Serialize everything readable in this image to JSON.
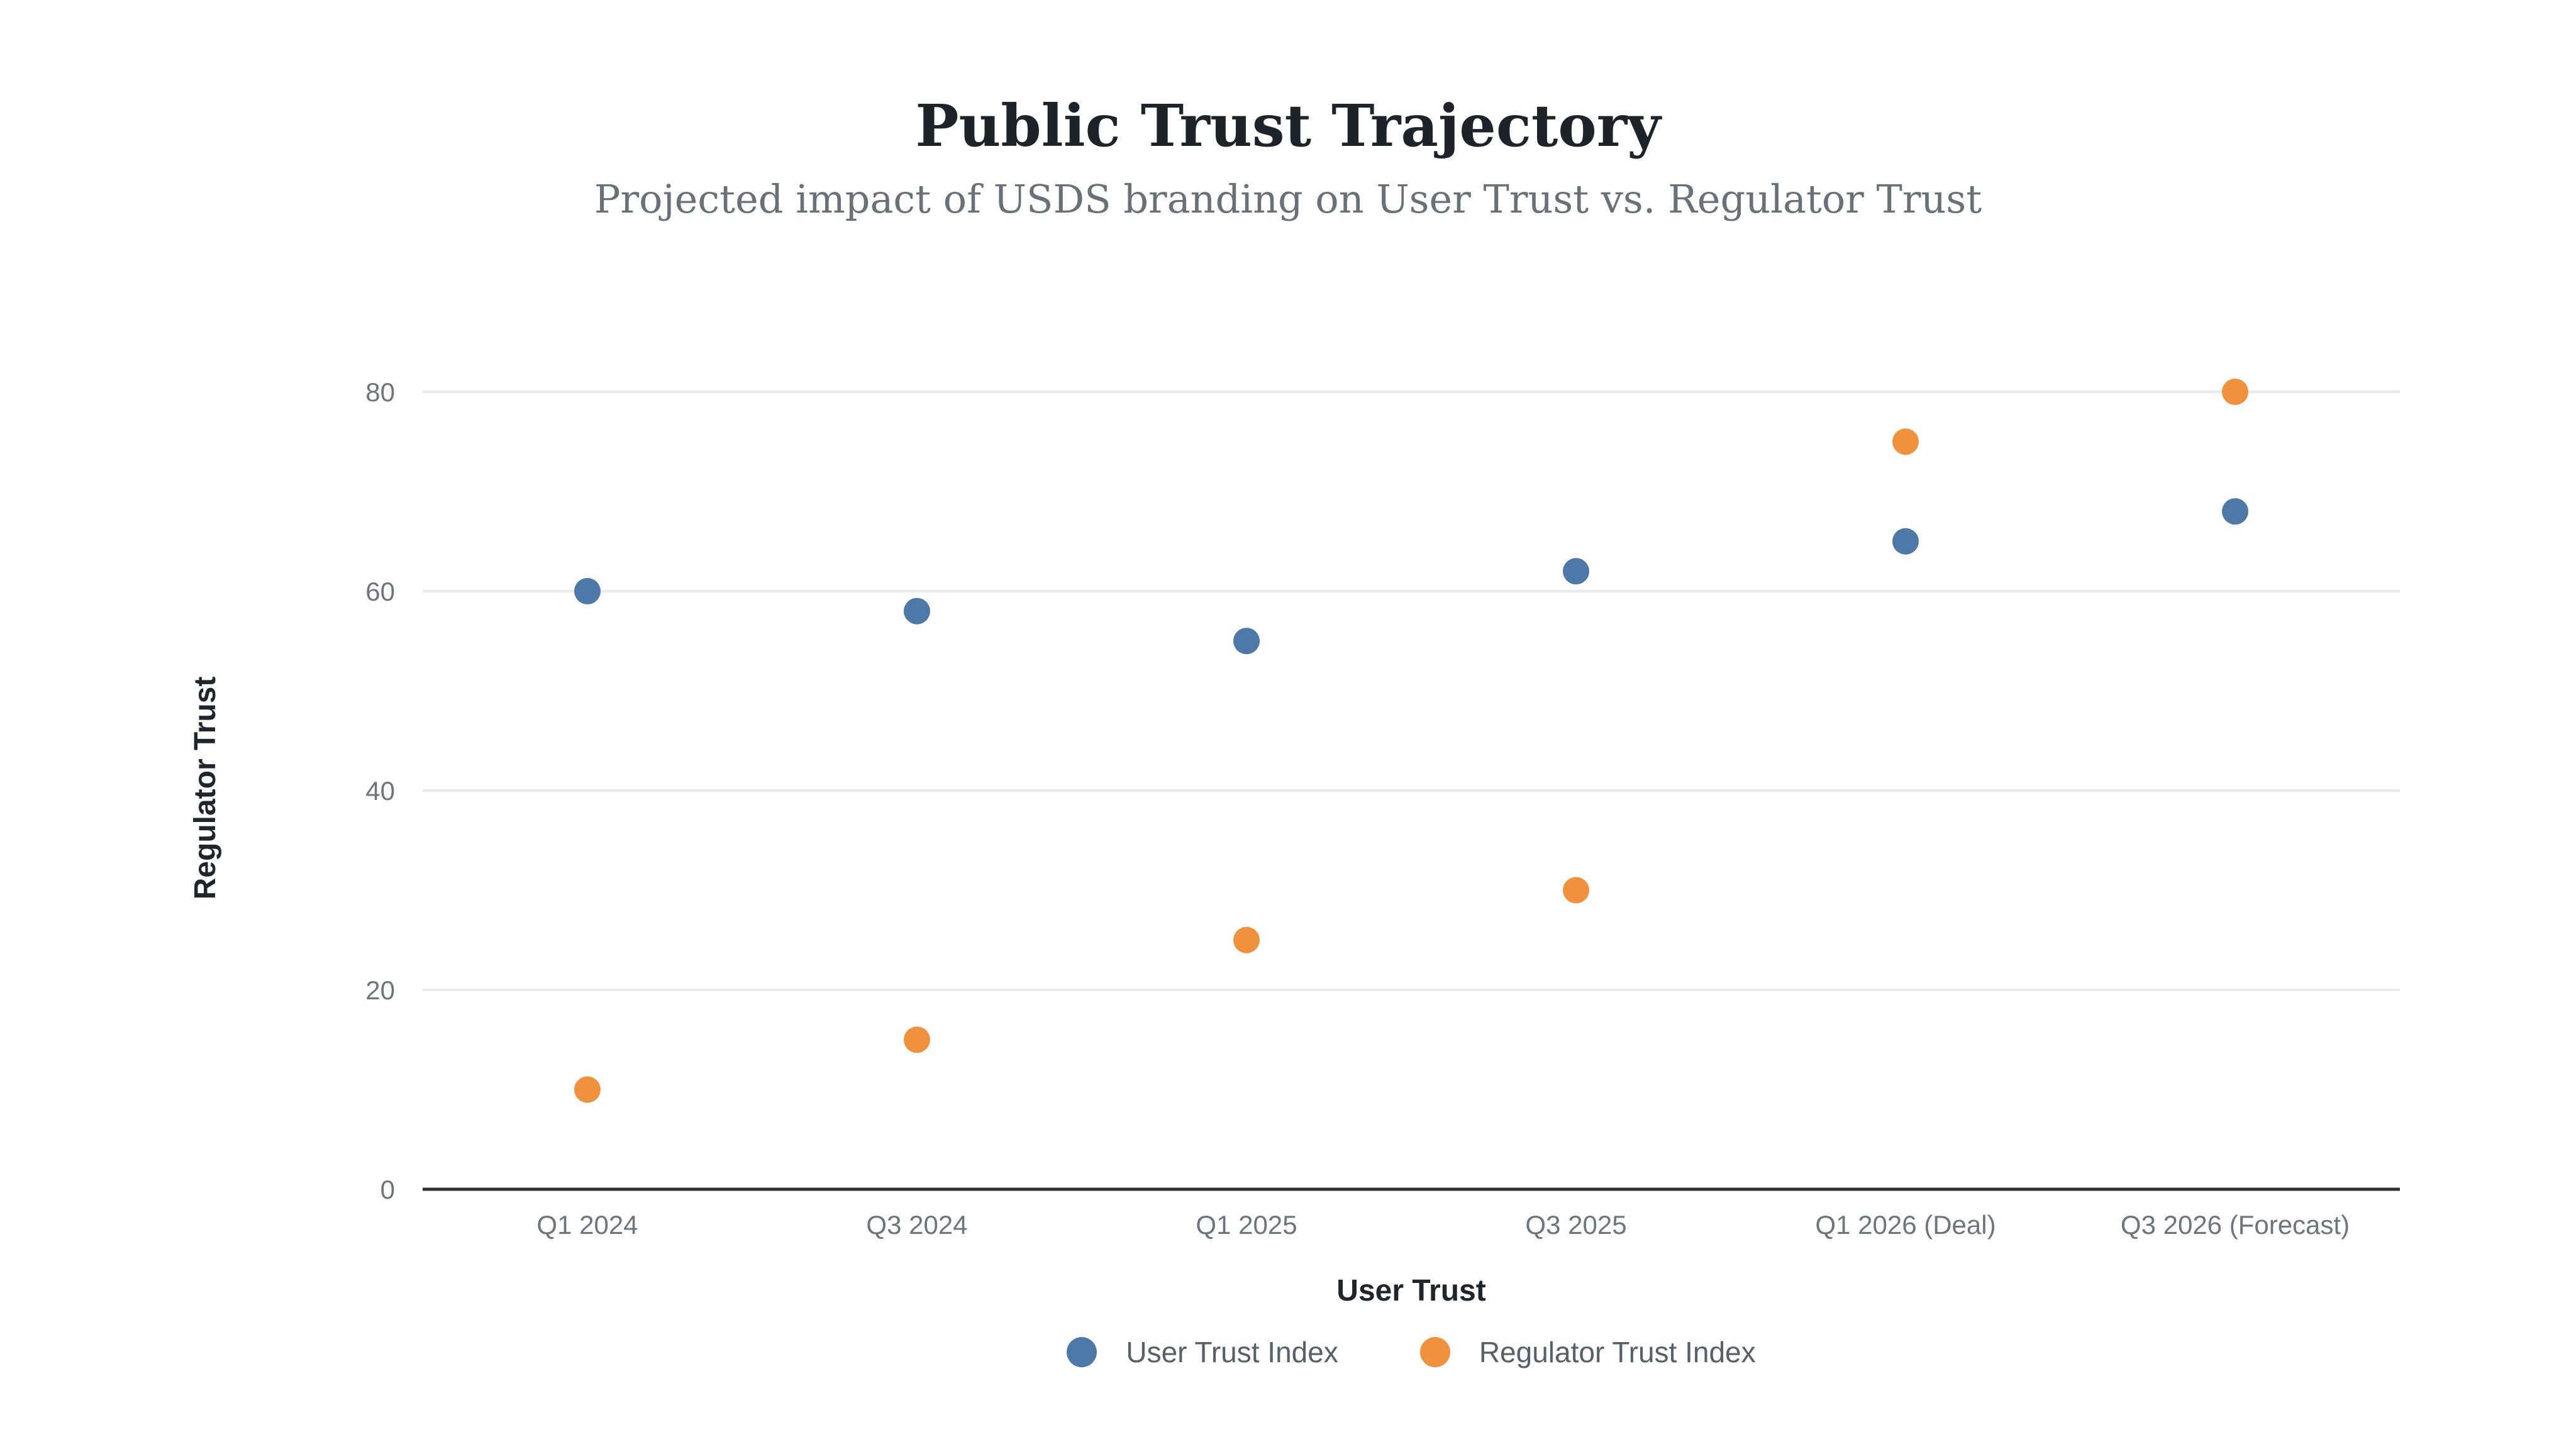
{
  "chart_data": {
    "type": "scatter",
    "title": "Public Trust Trajectory",
    "subtitle": "Projected impact of USDS branding on User Trust vs. Regulator Trust",
    "xlabel": "User Trust",
    "ylabel": "Regulator Trust",
    "categories": [
      "Q1 2024",
      "Q3 2024",
      "Q1 2025",
      "Q3 2025",
      "Q1 2026 (Deal)",
      "Q3 2026 (Forecast)"
    ],
    "series": [
      {
        "name": "User Trust Index",
        "color": "#4d79a8",
        "values": [
          60,
          58,
          55,
          62,
          65,
          68
        ]
      },
      {
        "name": "Regulator Trust Index",
        "color": "#f0923d",
        "values": [
          10,
          15,
          25,
          30,
          75,
          80
        ]
      }
    ],
    "ylim": [
      0,
      80
    ],
    "yticks": [
      0,
      20,
      40,
      60,
      80
    ],
    "grid": "horizontal",
    "gridline_color": "#e8eaee",
    "axis_line_color": "#2f2f2f",
    "legend_position": "bottom"
  }
}
